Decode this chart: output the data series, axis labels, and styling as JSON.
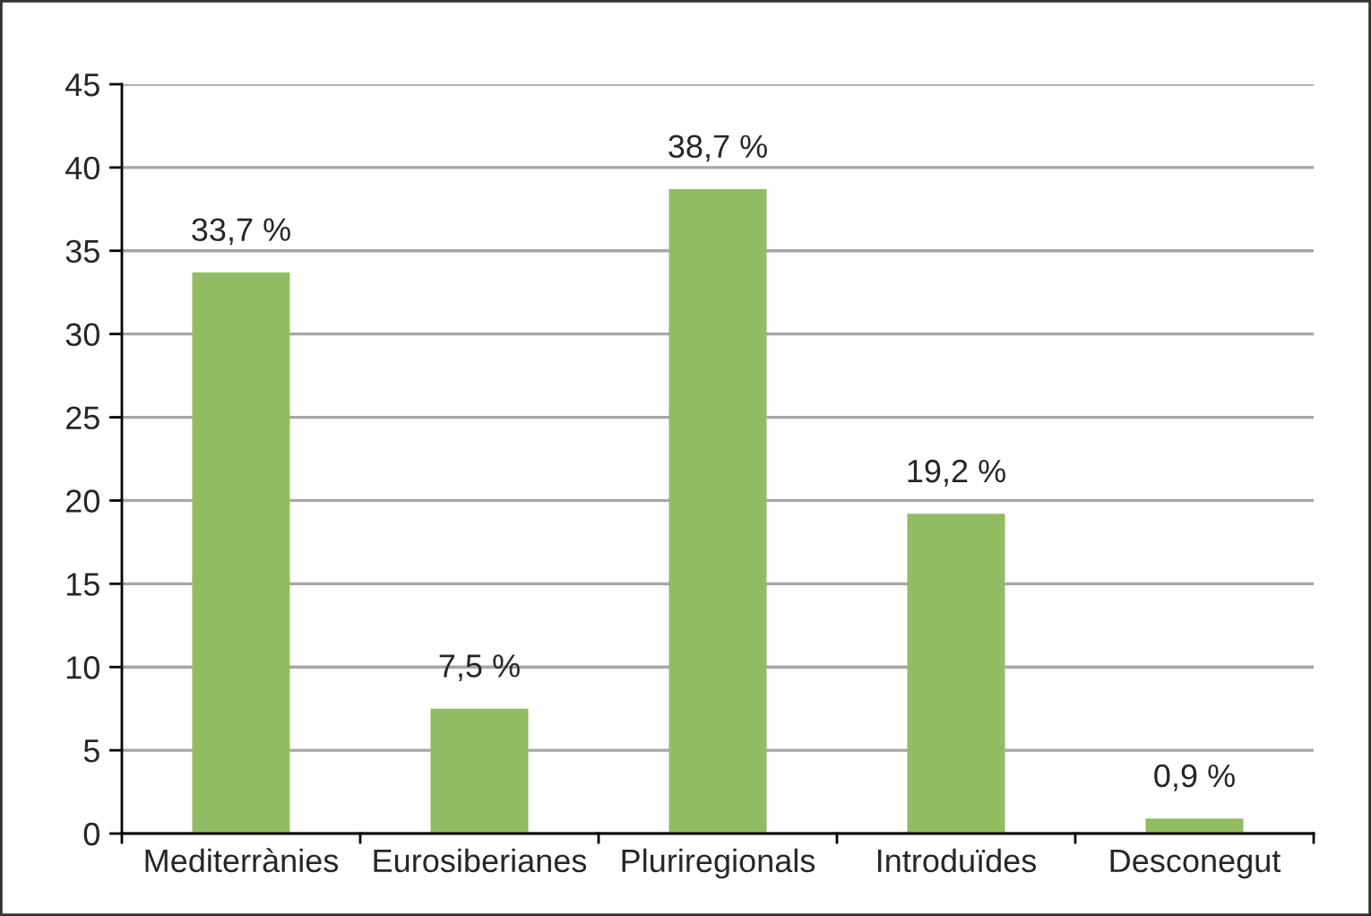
{
  "chart_data": {
    "type": "bar",
    "categories": [
      "Mediterrànies",
      "Eurosiberianes",
      "Pluriregionals",
      "Introduïdes",
      "Desconegut"
    ],
    "values": [
      33.7,
      7.5,
      38.7,
      19.2,
      0.9
    ],
    "value_labels": [
      "33,7 %",
      "7,5 %",
      "38,7 %",
      "19,2 %",
      "0,9 %"
    ],
    "color": "#92bc64",
    "ylim": [
      0,
      45
    ],
    "yticks": [
      0,
      5,
      10,
      15,
      20,
      25,
      30,
      35,
      40,
      45
    ],
    "grid": "y",
    "legend": false
  }
}
